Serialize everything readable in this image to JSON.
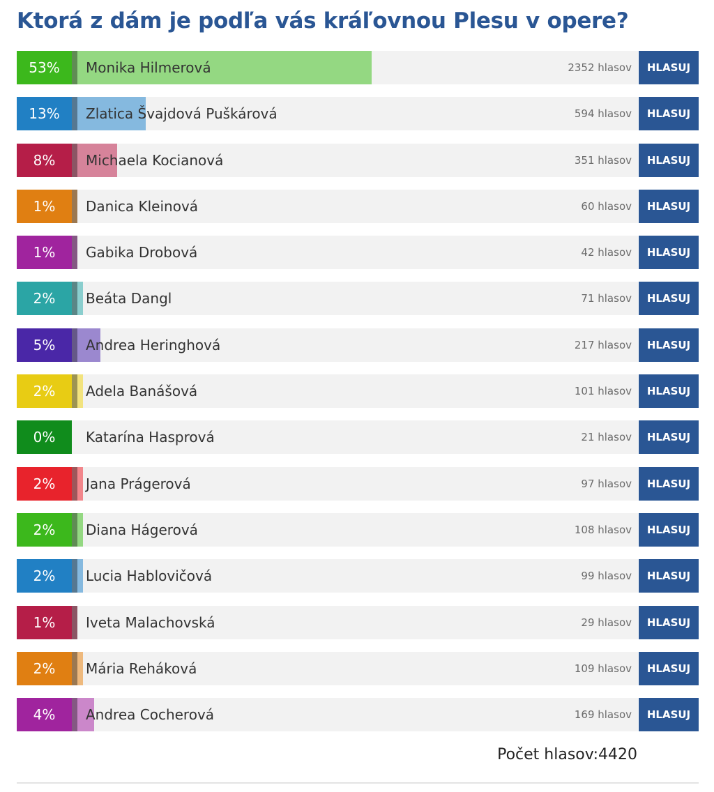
{
  "title": "Ktorá z dám je podľa vás kráľovnou Plesu v opere?",
  "vote_label": "HLASUJ",
  "total_label": "Počet hlasov:",
  "total_votes": "4420",
  "colors": [
    "#3cb81c",
    "#2180c4",
    "#b51e48",
    "#e07f12",
    "#a0249e",
    "#2ba5a5",
    "#4a27a7",
    "#e8cc14",
    "#108c1c",
    "#e8232c"
  ],
  "options": [
    {
      "percent_label": "53%",
      "name": "Monika Hilmerová",
      "votes": "2352 hlasov",
      "percent": 53,
      "color": "#3cb81c"
    },
    {
      "percent_label": "13%",
      "name": "Zlatica Švajdová Puškárová",
      "votes": "594 hlasov",
      "percent": 13,
      "color": "#2180c4"
    },
    {
      "percent_label": "8%",
      "name": "Michaela Kocianová",
      "votes": "351 hlasov",
      "percent": 8,
      "color": "#b51e48"
    },
    {
      "percent_label": "1%",
      "name": "Danica Kleinová",
      "votes": "60 hlasov",
      "percent": 1,
      "color": "#e07f12"
    },
    {
      "percent_label": "1%",
      "name": "Gabika Drobová",
      "votes": "42 hlasov",
      "percent": 1,
      "color": "#a0249e"
    },
    {
      "percent_label": "2%",
      "name": "Beáta Dangl",
      "votes": "71 hlasov",
      "percent": 2,
      "color": "#2ba5a5"
    },
    {
      "percent_label": "5%",
      "name": "Andrea Heringhová",
      "votes": "217 hlasov",
      "percent": 5,
      "color": "#4a27a7"
    },
    {
      "percent_label": "2%",
      "name": "Adela Banášová",
      "votes": "101 hlasov",
      "percent": 2,
      "color": "#e8cc14"
    },
    {
      "percent_label": "0%",
      "name": "Katarína Hasprová",
      "votes": "21 hlasov",
      "percent": 0,
      "color": "#108c1c"
    },
    {
      "percent_label": "2%",
      "name": "Jana Prágerová",
      "votes": "97 hlasov",
      "percent": 2,
      "color": "#e8232c"
    },
    {
      "percent_label": "2%",
      "name": "Diana Hágerová",
      "votes": "108 hlasov",
      "percent": 2,
      "color": "#3cb81c"
    },
    {
      "percent_label": "2%",
      "name": "Lucia Hablovičová",
      "votes": "99 hlasov",
      "percent": 2,
      "color": "#2180c4"
    },
    {
      "percent_label": "1%",
      "name": "Iveta Malachovská",
      "votes": "29 hlasov",
      "percent": 1,
      "color": "#b51e48"
    },
    {
      "percent_label": "2%",
      "name": "Mária Reháková",
      "votes": "109 hlasov",
      "percent": 2,
      "color": "#e07f12"
    },
    {
      "percent_label": "4%",
      "name": "Andrea Cocherová",
      "votes": "169 hlasov",
      "percent": 4,
      "color": "#a0249e"
    }
  ]
}
